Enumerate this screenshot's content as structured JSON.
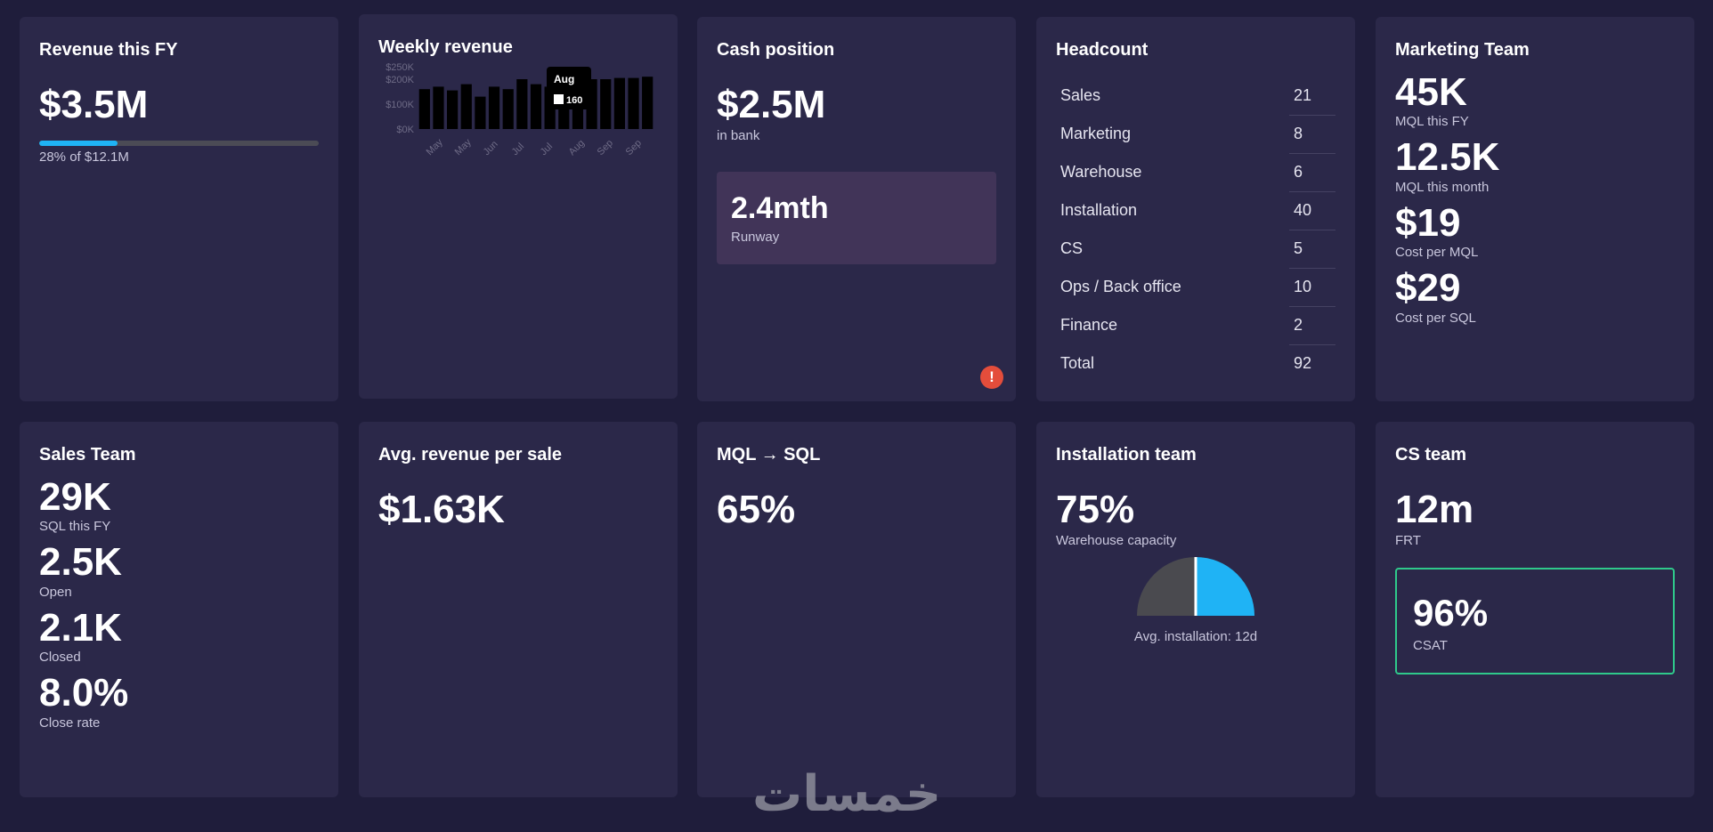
{
  "revenue": {
    "title": "Revenue this FY",
    "value": "$3.5M",
    "progress_pct": 28,
    "caption": "28% of $12.1M"
  },
  "weekly_revenue": {
    "title": "Weekly revenue",
    "tooltip_title": "Aug",
    "tooltip_value": "160"
  },
  "chart_data": {
    "type": "bar",
    "title": "Weekly revenue",
    "y_ticks": [
      "$250K",
      "$200K",
      "$100K",
      "$0K"
    ],
    "x_ticks": [
      "May",
      "May",
      "Jun",
      "Jul",
      "Jul",
      "Aug",
      "Sep",
      "Sep"
    ],
    "ylim": [
      0,
      250
    ],
    "values": [
      160,
      170,
      155,
      180,
      130,
      170,
      160,
      200,
      180,
      170,
      160,
      180,
      200,
      200,
      205,
      205,
      210
    ],
    "bar_color": "#000000"
  },
  "cash": {
    "title": "Cash position",
    "value": "$2.5M",
    "caption": "in bank",
    "runway_value": "2.4mth",
    "runway_label": "Runway",
    "alert": "!"
  },
  "headcount": {
    "title": "Headcount",
    "rows": [
      {
        "name": "Sales",
        "count": "21"
      },
      {
        "name": "Marketing",
        "count": "8"
      },
      {
        "name": "Warehouse",
        "count": "6"
      },
      {
        "name": "Installation",
        "count": "40"
      },
      {
        "name": "CS",
        "count": "5"
      },
      {
        "name": "Ops / Back office",
        "count": "10"
      },
      {
        "name": "Finance",
        "count": "2"
      },
      {
        "name": "Total",
        "count": "92"
      }
    ]
  },
  "marketing": {
    "title": "Marketing Team",
    "stats": [
      {
        "value": "45K",
        "label": "MQL this FY"
      },
      {
        "value": "12.5K",
        "label": "MQL this month"
      },
      {
        "value": "$19",
        "label": "Cost per MQL"
      },
      {
        "value": "$29",
        "label": "Cost per SQL"
      }
    ]
  },
  "sales": {
    "title": "Sales Team",
    "stats": [
      {
        "value": "29K",
        "label": "SQL this FY"
      },
      {
        "value": "2.5K",
        "label": "Open"
      },
      {
        "value": "2.1K",
        "label": "Closed"
      },
      {
        "value": "8.0%",
        "label": "Close rate"
      }
    ]
  },
  "avg_revenue": {
    "title": "Avg. revenue per sale",
    "value": "$1.63K"
  },
  "mql_sql": {
    "title": "MQL → SQL",
    "value": "65%"
  },
  "installation": {
    "title": "Installation team",
    "value": "75%",
    "caption": "Warehouse capacity",
    "gauge_pct": 50,
    "gauge_caption": "Avg. installation: 12d"
  },
  "cs": {
    "title": "CS team",
    "value": "12m",
    "caption": "FRT",
    "csat_value": "96%",
    "csat_label": "CSAT"
  },
  "colors": {
    "accent": "#1fb3f5",
    "alert": "#e44d3b",
    "success": "#2fc98b"
  },
  "watermark": "خمسات"
}
